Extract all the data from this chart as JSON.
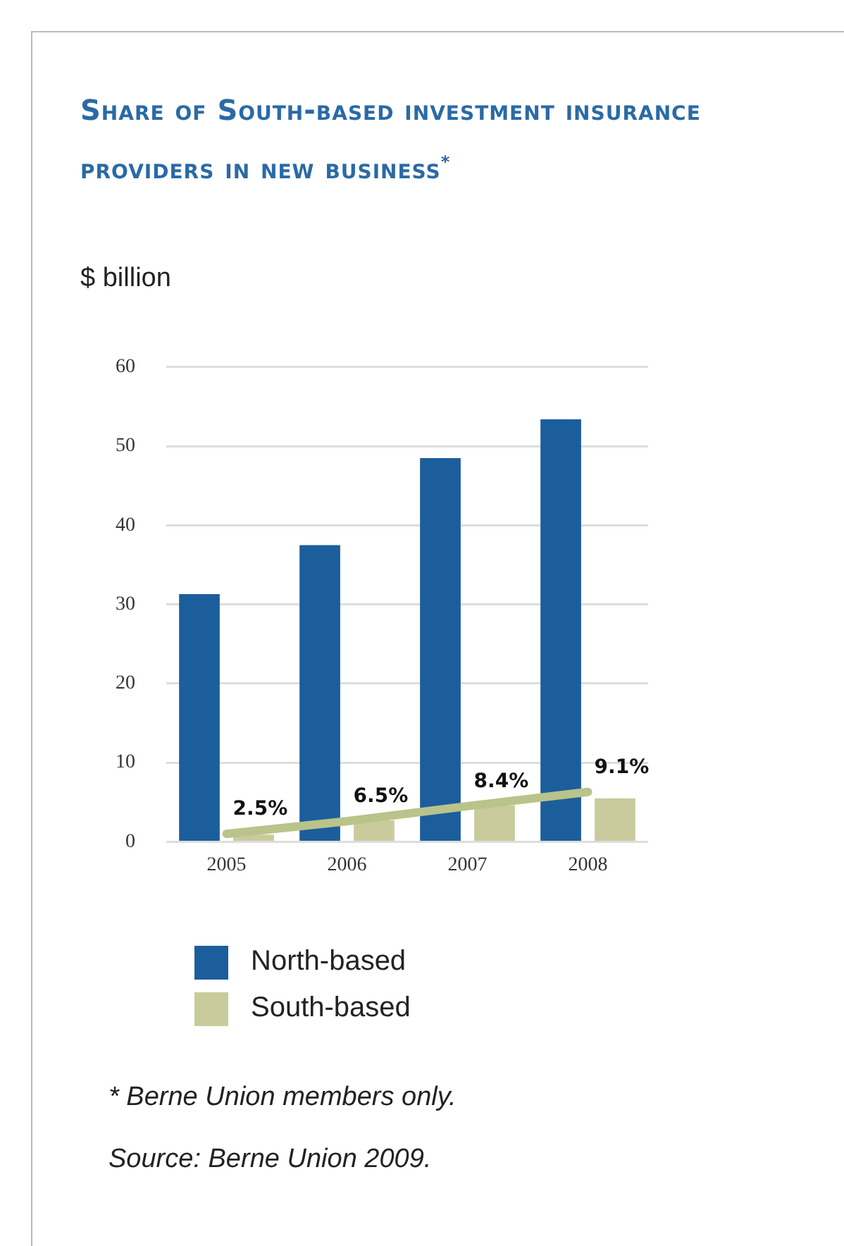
{
  "chart_data": {
    "type": "bar",
    "title": "Share of South-based investment insurance providers in new business$^{*}$",
    "ylabel": "$ billion",
    "categories": [
      "2005",
      "2006",
      "2007",
      "2008"
    ],
    "series": [
      {
        "name": "North-based",
        "color": "#1c5e9c",
        "values": [
          31.3,
          37.5,
          48.5,
          53.4
        ]
      },
      {
        "name": "South-based",
        "color": "#c9cb9c",
        "values": [
          0.9,
          2.7,
          4.6,
          5.5
        ]
      },
      {
        "type": "line",
        "color": "#b9c38a",
        "values": [
          1.0,
          2.6,
          4.5,
          6.3
        ]
      }
    ],
    "ylim": [
      0,
      60
    ],
    "yticks": [
      0,
      10,
      20,
      30,
      40,
      50,
      60
    ],
    "grid": "y",
    "legend": "bottom left",
    "marker": "none",
    "annotations": [
      {
        "text": "2.5%",
        "x": "2005",
        "y": 1.0
      },
      {
        "text": "6.5%",
        "x": "2006",
        "y": 2.6
      },
      {
        "text": "8.4%",
        "x": "2007",
        "y": 4.5
      },
      {
        "text": "9.1%",
        "x": "2008",
        "y": 6.3
      },
      "*  Berne Union members only.",
      "Source: Berne Union 2009."
    ]
  }
}
